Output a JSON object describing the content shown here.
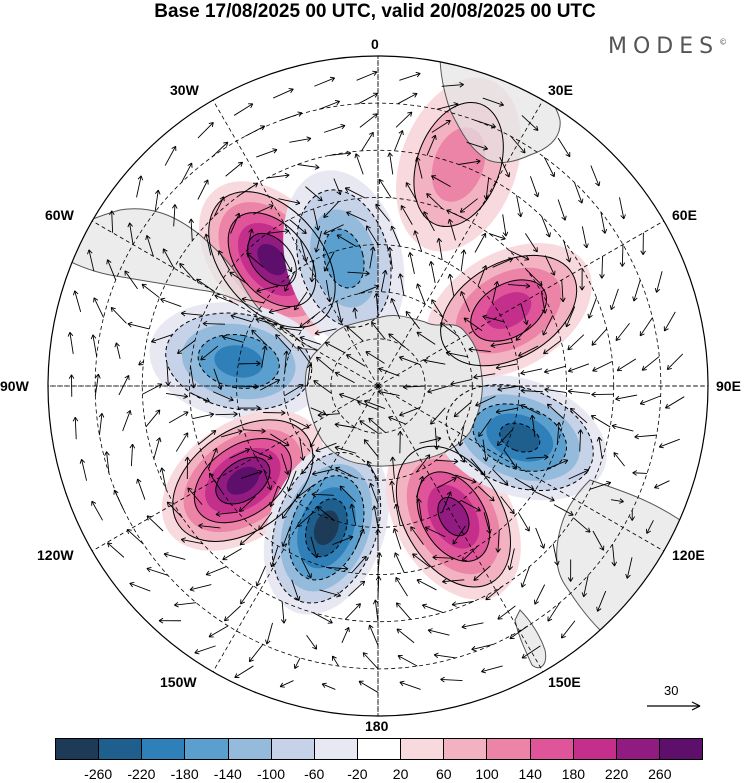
{
  "title": "Base 17/08/2025 00 UTC, valid 20/08/2025 00 UTC",
  "brand": "MODES",
  "brand_mark": "©",
  "longitude_labels": {
    "top": "0",
    "e30": "30E",
    "e60": "60E",
    "e90": "90E",
    "e120": "120E",
    "e150": "150E",
    "bottom": "180",
    "w150": "150W",
    "w120": "120W",
    "w90": "90W",
    "w60": "60W",
    "w30": "30W"
  },
  "reference_vector": {
    "label": "30"
  },
  "colorbar": {
    "colors": [
      "#1d3b57",
      "#1f5f8e",
      "#2f7fb8",
      "#5a9fcd",
      "#94bbdc",
      "#c6d2e8",
      "#e8e8f3",
      "#ffffff",
      "#f8d9de",
      "#f3b2c2",
      "#ec84a8",
      "#e0559a",
      "#c42f8c",
      "#921b82",
      "#5e0e6b"
    ],
    "ticks": [
      "-260",
      "-220",
      "-180",
      "-140",
      "-100",
      "-60",
      "-20",
      "20",
      "60",
      "100",
      "140",
      "180",
      "220",
      "260"
    ]
  },
  "anomaly_centers": [
    {
      "name": "south-atlantic-positive",
      "lon": -40,
      "lat": -55,
      "value": 260
    },
    {
      "name": "weddell-negative",
      "lon": -15,
      "lat": -62,
      "value": -140
    },
    {
      "name": "pacific-west-negative",
      "lon": -80,
      "lat": -60,
      "value": -180
    },
    {
      "name": "pacific-positive",
      "lon": -125,
      "lat": -55,
      "value": 280
    },
    {
      "name": "ross-negative",
      "lon": -160,
      "lat": -58,
      "value": -260
    },
    {
      "name": "tasman-positive",
      "lon": 150,
      "lat": -58,
      "value": 240
    },
    {
      "name": "indian-negative",
      "lon": 110,
      "lat": -58,
      "value": -220
    },
    {
      "name": "indian-positive",
      "lon": 60,
      "lat": -58,
      "value": 180
    },
    {
      "name": "south-africa-positive",
      "lon": 20,
      "lat": -40,
      "value": 100
    }
  ],
  "colors": {
    "grid": "#000000",
    "land": "#e6e6e6",
    "coast": "#555555"
  }
}
